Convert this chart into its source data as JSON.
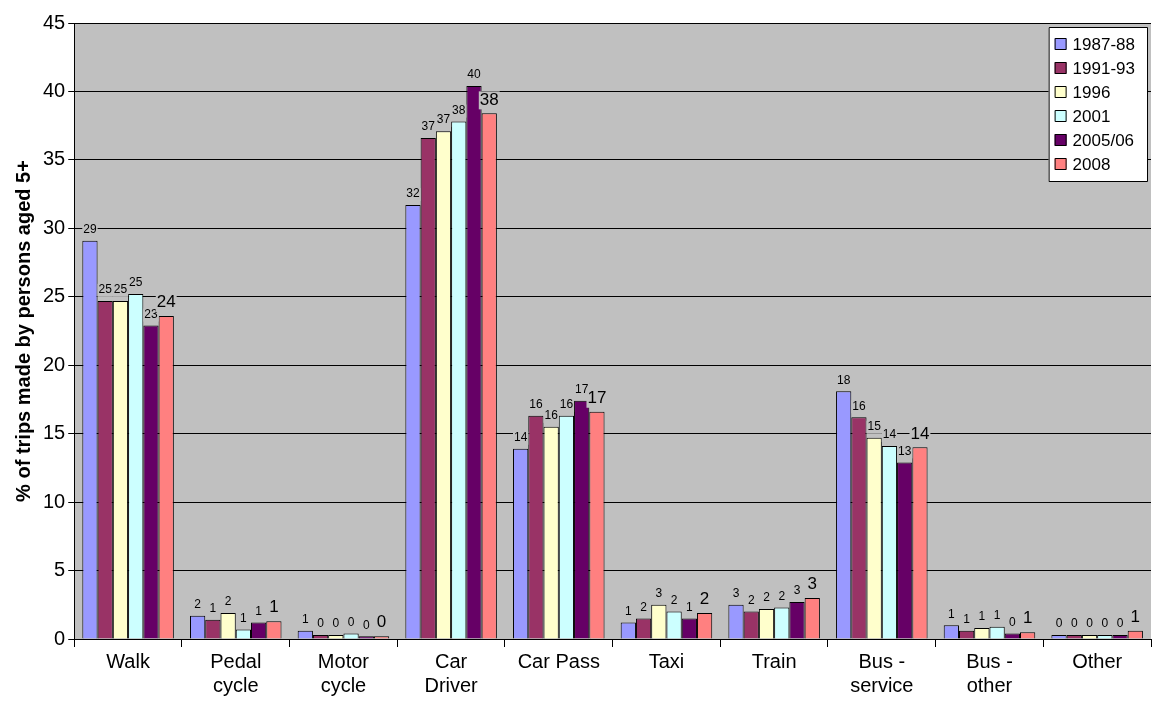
{
  "chart_data": {
    "type": "bar",
    "ylabel": "% of trips made by persons aged 5+",
    "categories": [
      "Walk",
      "Pedal cycle",
      "Motor cycle",
      "Car Driver",
      "Car Pass",
      "Taxi",
      "Train",
      "Bus - service",
      "Bus - other",
      "Other"
    ],
    "series": [
      {
        "name": "1987-88",
        "color": "#9999ff",
        "values": [
          29.1,
          1.7,
          0.6,
          31.7,
          13.9,
          1.2,
          2.5,
          18.1,
          1.0,
          0.3
        ],
        "value_labels": [
          "29",
          "2",
          "1",
          "32",
          "14",
          "1",
          "3",
          "18",
          "1",
          "0"
        ]
      },
      {
        "name": "1991-93",
        "color": "#993366",
        "values": [
          24.7,
          1.4,
          0.3,
          36.6,
          16.3,
          1.5,
          2.0,
          16.2,
          0.6,
          0.3
        ],
        "value_labels": [
          "25",
          "1",
          "0",
          "37",
          "16",
          "2",
          "2",
          "16",
          "1",
          "0"
        ]
      },
      {
        "name": "1996",
        "color": "#ffffcc",
        "values": [
          24.7,
          1.9,
          0.3,
          37.1,
          15.5,
          2.5,
          2.2,
          14.7,
          0.8,
          0.3
        ],
        "value_labels": [
          "25",
          "2",
          "0",
          "37",
          "16",
          "3",
          "2",
          "15",
          "1",
          "0"
        ]
      },
      {
        "name": "2001",
        "color": "#ccffff",
        "values": [
          25.2,
          0.7,
          0.4,
          37.8,
          16.3,
          2.0,
          2.3,
          14.1,
          0.9,
          0.3
        ],
        "value_labels": [
          "25",
          "1",
          "0",
          "38",
          "16",
          "2",
          "2",
          "14",
          "1",
          "0"
        ]
      },
      {
        "name": "2005/06",
        "color": "#660066",
        "values": [
          22.9,
          1.2,
          0.2,
          40.4,
          17.4,
          1.5,
          2.7,
          12.9,
          0.4,
          0.3
        ],
        "value_labels": [
          "23",
          "1",
          "0",
          "40",
          "17",
          "1",
          "3",
          "13",
          "0",
          "0"
        ]
      },
      {
        "name": "2008",
        "color": "#ff8080",
        "values": [
          23.6,
          1.3,
          0.2,
          38.4,
          16.6,
          1.9,
          3.0,
          14.0,
          0.5,
          0.6
        ],
        "value_labels": [
          "24",
          "1",
          "0",
          "38",
          "17",
          "2",
          "3",
          "14",
          "1",
          "1"
        ]
      }
    ],
    "ylim": [
      0,
      45
    ],
    "yticks": [
      0,
      5,
      10,
      15,
      20,
      25,
      30,
      35,
      40,
      45
    ],
    "grid": "y",
    "legend": "top right"
  }
}
